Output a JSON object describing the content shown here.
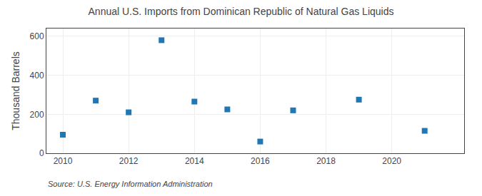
{
  "chart_data": {
    "type": "scatter",
    "title": "Annual U.S. Imports from Dominican Republic of Natural Gas Liquids",
    "ylabel": "Thousand Barrels",
    "annotations": [
      "Source: U.S. Energy Information Administration"
    ],
    "x": [
      2010,
      2011,
      2012,
      2013,
      2014,
      2015,
      2016,
      2017,
      2019,
      2021
    ],
    "values": [
      95,
      270,
      210,
      580,
      265,
      225,
      60,
      220,
      275,
      115
    ],
    "xlim": [
      2009.5,
      2022.2
    ],
    "xticks": [
      2010,
      2012,
      2014,
      2016,
      2018,
      2020
    ],
    "ylim": [
      0,
      640
    ],
    "yticks": [
      0,
      200,
      400,
      600
    ],
    "marker": "square",
    "grid": true
  }
}
